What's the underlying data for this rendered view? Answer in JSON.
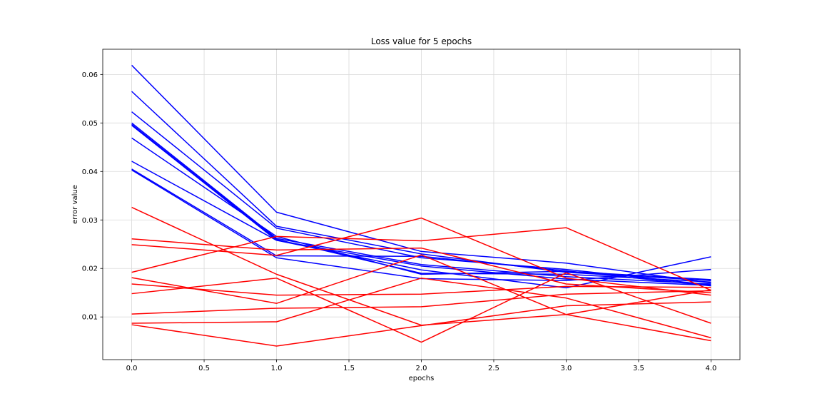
{
  "chart_data": {
    "type": "line",
    "title": "Loss value for 5 epochs",
    "xlabel": "epochs",
    "ylabel": "error value",
    "x": [
      0,
      1,
      2,
      3,
      4
    ],
    "xlim": [
      -0.2,
      4.2
    ],
    "ylim": [
      0.0012,
      0.0652
    ],
    "xticks": [
      0.0,
      0.5,
      1.0,
      1.5,
      2.0,
      2.5,
      3.0,
      3.5,
      4.0
    ],
    "xtick_labels": [
      "0.0",
      "0.5",
      "1.0",
      "1.5",
      "2.0",
      "2.5",
      "3.0",
      "3.5",
      "4.0"
    ],
    "yticks": [
      0.01,
      0.02,
      0.03,
      0.04,
      0.05,
      0.06
    ],
    "ytick_labels": [
      "0.01",
      "0.02",
      "0.03",
      "0.04",
      "0.05",
      "0.06"
    ],
    "grid": true,
    "colors": {
      "blue": "#0000ff",
      "red": "#ff0000",
      "grid": "#d9d9d9",
      "axes": "#000000"
    },
    "series": [
      {
        "color": "blue",
        "values": [
          0.0619,
          0.0316,
          0.0235,
          0.0211,
          0.017
        ]
      },
      {
        "color": "blue",
        "values": [
          0.0565,
          0.0287,
          0.023,
          0.0192,
          0.0175
        ]
      },
      {
        "color": "blue",
        "values": [
          0.0523,
          0.0283,
          0.0222,
          0.0198,
          0.0166
        ]
      },
      {
        "color": "blue",
        "values": [
          0.05,
          0.0262,
          0.0208,
          0.0183,
          0.0168
        ]
      },
      {
        "color": "blue",
        "values": [
          0.0497,
          0.026,
          0.019,
          0.0188,
          0.0172
        ]
      },
      {
        "color": "blue",
        "values": [
          0.0495,
          0.0258,
          0.0205,
          0.0178,
          0.0165
        ]
      },
      {
        "color": "blue",
        "values": [
          0.0469,
          0.0266,
          0.0188,
          0.0194,
          0.0177
        ]
      },
      {
        "color": "blue",
        "values": [
          0.0421,
          0.0258,
          0.0197,
          0.016,
          0.0224
        ]
      },
      {
        "color": "blue",
        "values": [
          0.0405,
          0.0226,
          0.0225,
          0.0195,
          0.0164
        ]
      },
      {
        "color": "blue",
        "values": [
          0.0403,
          0.0222,
          0.0179,
          0.0175,
          0.0198
        ]
      },
      {
        "color": "red",
        "values": [
          0.0326,
          0.0188,
          0.0083,
          0.0105,
          0.0156
        ]
      },
      {
        "color": "red",
        "values": [
          0.0261,
          0.0238,
          0.0242,
          0.0168,
          0.015
        ]
      },
      {
        "color": "red",
        "values": [
          0.0249,
          0.0227,
          0.0304,
          0.018,
          0.0145
        ]
      },
      {
        "color": "red",
        "values": [
          0.0192,
          0.0266,
          0.0257,
          0.0284,
          0.0155
        ]
      },
      {
        "color": "red",
        "values": [
          0.0181,
          0.0128,
          0.0228,
          0.0105,
          0.0051
        ]
      },
      {
        "color": "red",
        "values": [
          0.0168,
          0.0145,
          0.0147,
          0.0163,
          0.0161
        ]
      },
      {
        "color": "red",
        "values": [
          0.0148,
          0.018,
          0.0048,
          0.0191,
          0.0087
        ]
      },
      {
        "color": "red",
        "values": [
          0.0106,
          0.0118,
          0.0121,
          0.0147,
          0.0154
        ]
      },
      {
        "color": "red",
        "values": [
          0.0087,
          0.009,
          0.018,
          0.0139,
          0.0057
        ]
      },
      {
        "color": "red",
        "values": [
          0.0084,
          0.004,
          0.0082,
          0.0123,
          0.0131
        ]
      }
    ]
  }
}
